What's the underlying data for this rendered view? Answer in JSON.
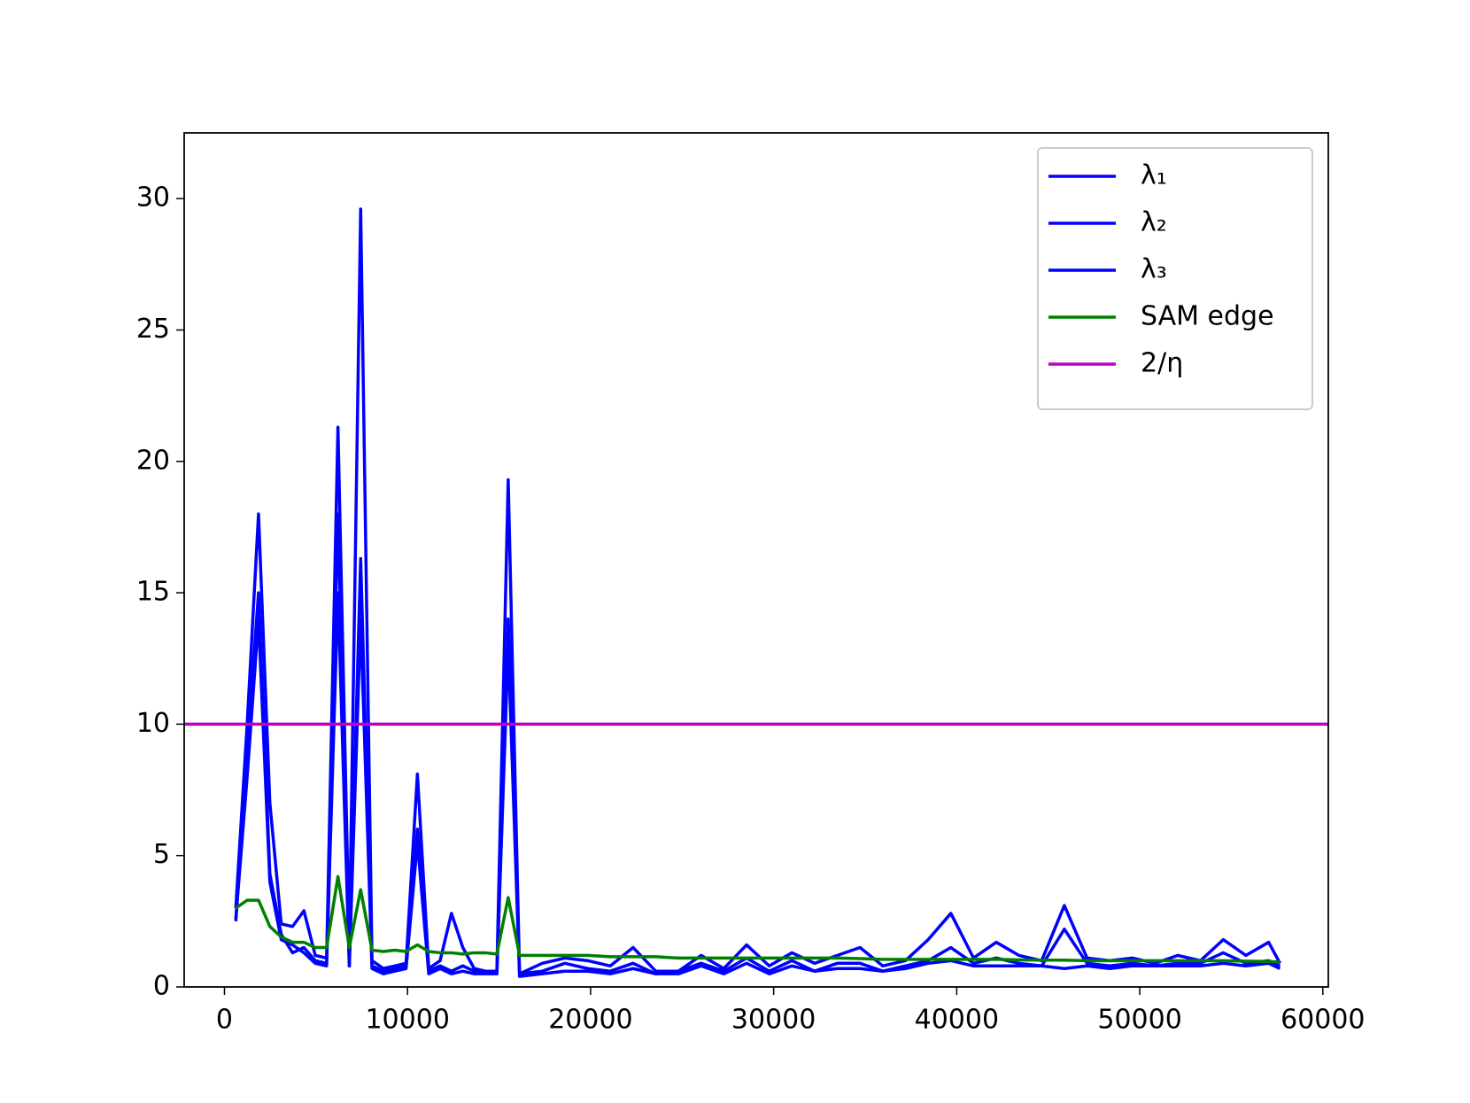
{
  "chart_data": {
    "type": "line",
    "x": [
      620,
      1240,
      1860,
      2480,
      3100,
      3720,
      4340,
      4960,
      5580,
      6200,
      6820,
      7440,
      8060,
      8680,
      9300,
      9920,
      10540,
      11160,
      11780,
      12400,
      13020,
      13640,
      14260,
      14880,
      15500,
      16120,
      17360,
      18600,
      19840,
      21080,
      22320,
      23560,
      24800,
      26040,
      27280,
      28520,
      29760,
      31000,
      32240,
      33480,
      34720,
      35960,
      37200,
      38440,
      39680,
      40920,
      42160,
      43400,
      44640,
      45880,
      47120,
      48360,
      49600,
      50840,
      52080,
      53320,
      54560,
      55800,
      57040,
      57660
    ],
    "series": [
      {
        "name": "λ₁",
        "color": "#0000ff",
        "values": [
          3,
          10,
          18,
          7,
          2.4,
          2.3,
          2.9,
          1.2,
          1.1,
          21.3,
          1.5,
          29.6,
          1.0,
          0.7,
          0.8,
          0.9,
          8.1,
          0.7,
          1.0,
          2.8,
          1.5,
          0.7,
          0.6,
          0.6,
          19.3,
          0.5,
          0.9,
          1.1,
          1.0,
          0.8,
          1.5,
          0.6,
          0.6,
          1.2,
          0.7,
          1.6,
          0.8,
          1.3,
          0.9,
          1.2,
          1.5,
          0.8,
          1.0,
          1.8,
          2.8,
          1.1,
          1.7,
          1.2,
          1.0,
          3.1,
          1.1,
          1.0,
          1.1,
          0.9,
          1.2,
          1.0,
          1.8,
          1.2,
          1.7,
          0.9
        ]
      },
      {
        "name": "λ₂",
        "color": "#0000ff",
        "values": [
          2.5,
          9,
          15,
          4.3,
          2.0,
          1.3,
          1.5,
          1.0,
          0.9,
          18,
          0.8,
          16.3,
          0.8,
          0.6,
          0.7,
          0.8,
          6,
          0.6,
          0.8,
          0.6,
          0.8,
          0.6,
          0.6,
          0.5,
          14,
          0.5,
          0.6,
          0.9,
          0.7,
          0.6,
          0.9,
          0.5,
          0.6,
          0.9,
          0.6,
          1.1,
          0.6,
          1.0,
          0.6,
          0.9,
          0.9,
          0.6,
          0.8,
          1.0,
          1.5,
          0.9,
          1.1,
          0.9,
          0.8,
          2.2,
          0.9,
          0.8,
          0.9,
          0.8,
          0.9,
          0.9,
          1.3,
          0.9,
          1.0,
          0.8
        ]
      },
      {
        "name": "λ₃",
        "color": "#0000ff",
        "values": [
          2.6,
          8,
          14,
          4,
          1.8,
          1.6,
          1.3,
          0.9,
          0.8,
          15,
          0.8,
          14,
          0.7,
          0.5,
          0.6,
          0.7,
          5.5,
          0.5,
          0.7,
          0.5,
          0.6,
          0.5,
          0.5,
          0.5,
          13,
          0.4,
          0.5,
          0.6,
          0.6,
          0.5,
          0.7,
          0.5,
          0.5,
          0.8,
          0.5,
          0.9,
          0.5,
          0.8,
          0.6,
          0.7,
          0.7,
          0.6,
          0.7,
          0.9,
          1.0,
          0.8,
          0.8,
          0.8,
          0.8,
          0.7,
          0.8,
          0.7,
          0.8,
          0.8,
          0.8,
          0.8,
          0.9,
          0.8,
          0.9,
          0.7
        ]
      },
      {
        "name": "SAM edge",
        "color": "#008000",
        "values": [
          3.0,
          3.3,
          3.3,
          2.3,
          1.9,
          1.7,
          1.7,
          1.5,
          1.5,
          4.2,
          1.5,
          3.7,
          1.4,
          1.35,
          1.4,
          1.35,
          1.6,
          1.35,
          1.3,
          1.3,
          1.25,
          1.3,
          1.3,
          1.25,
          3.4,
          1.2,
          1.2,
          1.2,
          1.2,
          1.15,
          1.15,
          1.15,
          1.1,
          1.1,
          1.1,
          1.1,
          1.1,
          1.1,
          1.1,
          1.1,
          1.08,
          1.05,
          1.05,
          1.05,
          1.05,
          1.05,
          1.05,
          1.03,
          1.02,
          1.02,
          1.0,
          1.0,
          1.0,
          1.0,
          1.0,
          1.0,
          1.0,
          0.98,
          0.97,
          0.95
        ]
      }
    ],
    "hlines": [
      {
        "name": "2/η",
        "color": "#bf00bf",
        "y": 10
      }
    ],
    "xlim": [
      -2200,
      60300
    ],
    "ylim": [
      0,
      32.5
    ],
    "xticks": [
      0,
      10000,
      20000,
      30000,
      40000,
      50000,
      60000
    ],
    "yticks": [
      0,
      5,
      10,
      15,
      20,
      25,
      30
    ],
    "legend": "upper right"
  }
}
